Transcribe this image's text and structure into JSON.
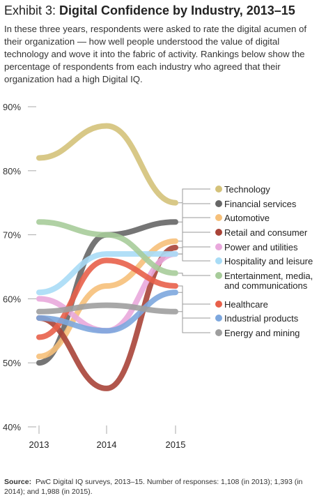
{
  "header": {
    "prefix": "Exhibit 3: ",
    "title": "Digital Confidence by Industry, 2013–15",
    "subtitle": "In these three years, respondents were asked to rate the digital acumen of their organization — how well people understood the value of digital technology and wove it into the fabric of activity. Rankings below show the percentage of respondents from each industry who agreed that their organization had a high Digital IQ."
  },
  "source": {
    "label": "Source:",
    "text": "PwC Digital IQ surveys, 2013–15. Number of responses: 1,108 (in 2013); 1,393 (in 2014); and 1,988 (in 2015)."
  },
  "chart_data": {
    "type": "line",
    "title": "Digital Confidence by Industry, 2013–15",
    "x": [
      "2013",
      "2014",
      "2015"
    ],
    "ylim": [
      40,
      90
    ],
    "yticks": [
      "40%",
      "50%",
      "60%",
      "70%",
      "80%",
      "90%"
    ],
    "ytick_values": [
      40,
      50,
      60,
      70,
      80,
      90
    ],
    "grid": false,
    "legend": "right",
    "series": [
      {
        "name": "Technology",
        "values": [
          82,
          87,
          75
        ],
        "color": "#d4c27a"
      },
      {
        "name": "Financial services",
        "values": [
          50,
          70,
          72
        ],
        "color": "#666666"
      },
      {
        "name": "Automotive",
        "values": [
          51,
          62,
          69
        ],
        "color": "#f6c07a"
      },
      {
        "name": "Retail and consumer",
        "values": [
          57,
          46,
          68
        ],
        "color": "#a94438"
      },
      {
        "name": "Power and utilities",
        "values": [
          60,
          55,
          67
        ],
        "color": "#e9a8dc"
      },
      {
        "name": "Hospitality and leisure",
        "values": [
          61,
          67,
          67
        ],
        "color": "#a8dcf6"
      },
      {
        "name": "Entertainment, media, and communications",
        "values": [
          72,
          70,
          64
        ],
        "color": "#a7cc9a"
      },
      {
        "name": "Healthcare",
        "values": [
          54,
          66,
          62
        ],
        "color": "#e8604a"
      },
      {
        "name": "Industrial products",
        "values": [
          57,
          55,
          61
        ],
        "color": "#7da7de"
      },
      {
        "name": "Energy and mining",
        "values": [
          58,
          59,
          58
        ],
        "color": "#9e9e9e"
      }
    ]
  }
}
